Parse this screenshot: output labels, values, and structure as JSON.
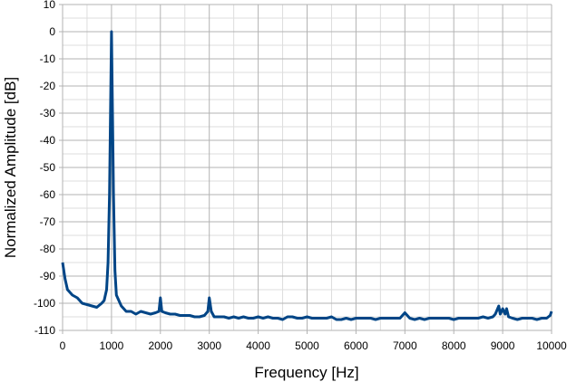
{
  "chart_data": {
    "type": "line",
    "xlabel": "Frequency [Hz]",
    "ylabel": "Normalized Amplitude [dB]",
    "xlim": [
      0,
      10000
    ],
    "ylim": [
      -110,
      10
    ],
    "x_ticks": [
      0,
      1000,
      2000,
      3000,
      4000,
      5000,
      6000,
      7000,
      8000,
      9000,
      10000
    ],
    "y_ticks": [
      10,
      0,
      -10,
      -20,
      -30,
      -40,
      -50,
      -60,
      -70,
      -80,
      -90,
      -100,
      -110
    ],
    "grid": true,
    "minor_grid": true,
    "line_color": "#004586",
    "grid_color": "#b3b3b3",
    "series": [
      {
        "points": [
          [
            0,
            -85
          ],
          [
            50,
            -91
          ],
          [
            100,
            -95
          ],
          [
            200,
            -97
          ],
          [
            300,
            -98
          ],
          [
            400,
            -100
          ],
          [
            500,
            -100.5
          ],
          [
            600,
            -101
          ],
          [
            700,
            -101.5
          ],
          [
            800,
            -100
          ],
          [
            850,
            -99
          ],
          [
            900,
            -95
          ],
          [
            930,
            -85
          ],
          [
            960,
            -60
          ],
          [
            980,
            -30
          ],
          [
            1000,
            0
          ],
          [
            1020,
            -30
          ],
          [
            1040,
            -60
          ],
          [
            1070,
            -88
          ],
          [
            1100,
            -97
          ],
          [
            1200,
            -101
          ],
          [
            1300,
            -103
          ],
          [
            1400,
            -103
          ],
          [
            1500,
            -104
          ],
          [
            1600,
            -103
          ],
          [
            1700,
            -103.5
          ],
          [
            1800,
            -104
          ],
          [
            1900,
            -103.5
          ],
          [
            1970,
            -103
          ],
          [
            2000,
            -98
          ],
          [
            2030,
            -103
          ],
          [
            2100,
            -103.5
          ],
          [
            2200,
            -104
          ],
          [
            2300,
            -104
          ],
          [
            2400,
            -104.5
          ],
          [
            2500,
            -104.5
          ],
          [
            2600,
            -104.5
          ],
          [
            2700,
            -105
          ],
          [
            2800,
            -105
          ],
          [
            2900,
            -104.5
          ],
          [
            2970,
            -103
          ],
          [
            3000,
            -98
          ],
          [
            3040,
            -103
          ],
          [
            3100,
            -105
          ],
          [
            3200,
            -105
          ],
          [
            3300,
            -105
          ],
          [
            3400,
            -105.5
          ],
          [
            3500,
            -105
          ],
          [
            3600,
            -105.5
          ],
          [
            3700,
            -105
          ],
          [
            3800,
            -105.5
          ],
          [
            3900,
            -105.5
          ],
          [
            4000,
            -105
          ],
          [
            4100,
            -105.5
          ],
          [
            4200,
            -105
          ],
          [
            4300,
            -105.5
          ],
          [
            4400,
            -105.5
          ],
          [
            4500,
            -106
          ],
          [
            4600,
            -105
          ],
          [
            4700,
            -105
          ],
          [
            4800,
            -105.5
          ],
          [
            4900,
            -105.5
          ],
          [
            5000,
            -105
          ],
          [
            5100,
            -105.5
          ],
          [
            5200,
            -105.5
          ],
          [
            5300,
            -105.5
          ],
          [
            5400,
            -105.5
          ],
          [
            5500,
            -105
          ],
          [
            5600,
            -106
          ],
          [
            5700,
            -106
          ],
          [
            5800,
            -105.5
          ],
          [
            5900,
            -106
          ],
          [
            6000,
            -105.5
          ],
          [
            6100,
            -105.5
          ],
          [
            6200,
            -105.5
          ],
          [
            6300,
            -105.5
          ],
          [
            6400,
            -106
          ],
          [
            6500,
            -105.5
          ],
          [
            6600,
            -105.5
          ],
          [
            6700,
            -105.5
          ],
          [
            6800,
            -105.5
          ],
          [
            6900,
            -105.5
          ],
          [
            7000,
            -103.5
          ],
          [
            7100,
            -105.5
          ],
          [
            7200,
            -106
          ],
          [
            7300,
            -105.5
          ],
          [
            7400,
            -106
          ],
          [
            7500,
            -105.5
          ],
          [
            7600,
            -105.5
          ],
          [
            7700,
            -105.5
          ],
          [
            7800,
            -105.5
          ],
          [
            7900,
            -105.5
          ],
          [
            8000,
            -106
          ],
          [
            8100,
            -105.5
          ],
          [
            8200,
            -105.5
          ],
          [
            8300,
            -105.5
          ],
          [
            8400,
            -105.5
          ],
          [
            8500,
            -105.5
          ],
          [
            8600,
            -105
          ],
          [
            8700,
            -105.5
          ],
          [
            8800,
            -105
          ],
          [
            8850,
            -104
          ],
          [
            8920,
            -101
          ],
          [
            8950,
            -104
          ],
          [
            9000,
            -102
          ],
          [
            9050,
            -104
          ],
          [
            9080,
            -102
          ],
          [
            9120,
            -105
          ],
          [
            9200,
            -105.5
          ],
          [
            9300,
            -106
          ],
          [
            9400,
            -105.5
          ],
          [
            9500,
            -105.5
          ],
          [
            9600,
            -105.5
          ],
          [
            9700,
            -106
          ],
          [
            9800,
            -105.5
          ],
          [
            9900,
            -105.5
          ],
          [
            9970,
            -104.5
          ],
          [
            10000,
            -103
          ]
        ]
      }
    ]
  }
}
